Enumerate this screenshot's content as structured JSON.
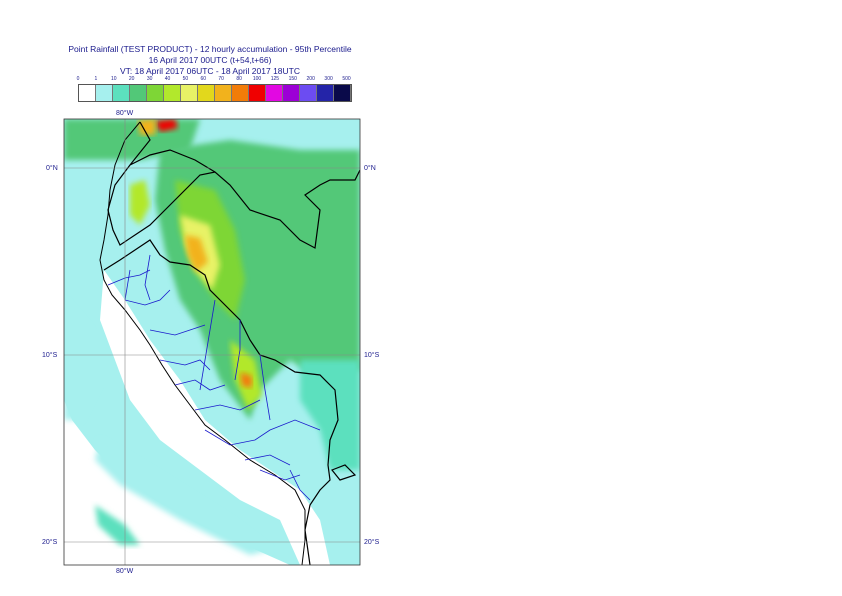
{
  "header": {
    "line1": "Point Rainfall (TEST PRODUCT) - 12 hourly accumulation - 95th Percentile",
    "line2": "16 April 2017 00UTC (t+54,t+66)",
    "line3": "VT: 18 April 2017 06UTC - 18 April 2017 18UTC"
  },
  "legend": {
    "thresholds": [
      "0",
      "1",
      "10",
      "20",
      "30",
      "40",
      "50",
      "60",
      "70",
      "80",
      "100",
      "125",
      "150",
      "200",
      "300",
      "500"
    ],
    "colors": [
      "#ffffff",
      "#a6f0ee",
      "#5ce0be",
      "#52c878",
      "#7ed636",
      "#b2e82c",
      "#e8f266",
      "#e2d81c",
      "#f2b21c",
      "#f27c08",
      "#f00000",
      "#e208e2",
      "#9c00d6",
      "#6c4cf2",
      "#2424a8",
      "#0a0a4a"
    ]
  },
  "axes": {
    "lon_top": "80°W",
    "lon_bottom": "80°W",
    "lat_0_left": "0°N",
    "lat_0_right": "0°N",
    "lat_10_left": "10°S",
    "lat_10_right": "10°S",
    "lat_20_left": "20°S",
    "lat_20_right": "20°S"
  }
}
